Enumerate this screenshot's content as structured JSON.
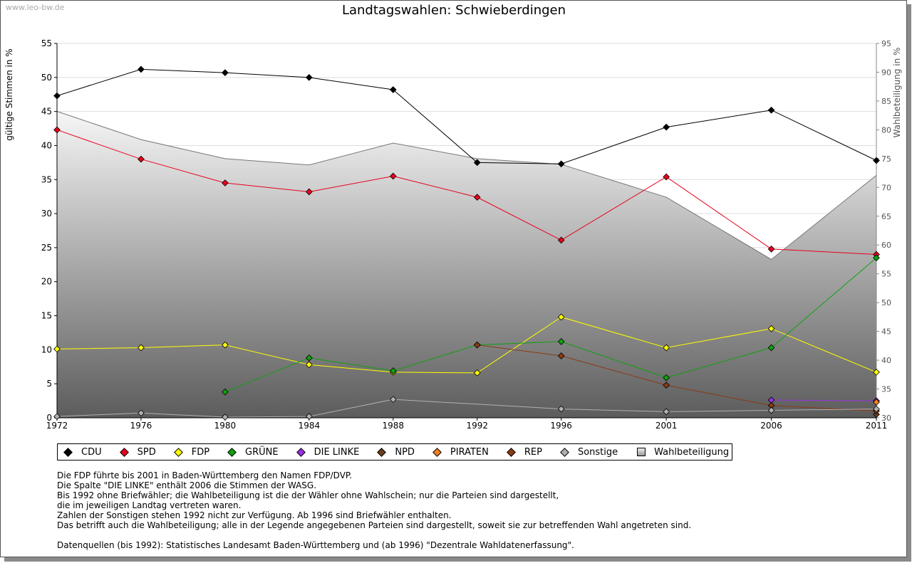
{
  "watermark": "www.leo-bw.de",
  "legend": [
    {
      "label": "CDU",
      "color": "#000000"
    },
    {
      "label": "SPD",
      "color": "#e8001c"
    },
    {
      "label": "FDP",
      "color": "#ffff00"
    },
    {
      "label": "GRÜNE",
      "color": "#10a010"
    },
    {
      "label": "DIE LINKE",
      "color": "#9a30e0"
    },
    {
      "label": "NPD",
      "color": "#6b3e1e"
    },
    {
      "label": "PIRATEN",
      "color": "#f08020"
    },
    {
      "label": "REP",
      "color": "#8b3a14"
    },
    {
      "label": "Sonstige",
      "color": "#b0b0b0"
    },
    {
      "label": "Wahlbeteiligung",
      "color": "#bbbbbb"
    }
  ],
  "notes": [
    "Die FDP führte bis 2001 in Baden-Württemberg den Namen FDP/DVP.",
    "Die Spalte \"DIE LINKE\" enthält 2006 die Stimmen der WASG.",
    "Bis 1992 ohne Briefwähler; die Wahlbeteiligung ist die der Wähler ohne Wahlschein; nur die Parteien sind dargestellt,",
    "die im jeweiligen Landtag vertreten waren.",
    "Zahlen der Sonstigen stehen 1992 nicht zur Verfügung. Ab 1996 sind Briefwähler enthalten.",
    "Das betrifft auch die Wahlbeteiligung; alle in der Legende angegebenen Parteien sind dargestellt, soweit sie zur betreffenden Wahl angetreten sind."
  ],
  "source": "Datenquellen (bis 1992): Statistisches Landesamt Baden-Württemberg und (ab 1996) \"Dezentrale Wahldatenerfassung\".",
  "chart_data": {
    "type": "line",
    "title": "Landtagswahlen: Schwieberdingen",
    "ylabel": "gültige Stimmen in %",
    "y2label": "Wahlbeteiligung in %",
    "ylim": [
      0,
      55
    ],
    "y2lim": [
      30,
      95
    ],
    "yticks": [
      "0",
      "5",
      "10",
      "15",
      "20",
      "25",
      "30",
      "35",
      "40",
      "45",
      "50",
      "55"
    ],
    "y2ticks": [
      "30",
      "35",
      "40",
      "45",
      "50",
      "55",
      "60",
      "65",
      "70",
      "75",
      "80",
      "85",
      "90",
      "95"
    ],
    "x": [
      1972,
      1976,
      1980,
      1984,
      1988,
      1992,
      1996,
      2001,
      2006,
      2011
    ],
    "xticks": [
      "1972",
      "1976",
      "1980",
      "1984",
      "1988",
      "1992",
      "1996",
      "2001",
      "2006",
      "2011"
    ],
    "grid": true,
    "legend_position": "bottom",
    "series": [
      {
        "name": "CDU",
        "color": "#000000",
        "values": [
          47.3,
          51.2,
          50.7,
          50.0,
          48.2,
          37.5,
          37.3,
          42.7,
          45.2,
          37.8
        ]
      },
      {
        "name": "SPD",
        "color": "#e8001c",
        "values": [
          42.3,
          38.0,
          34.5,
          33.2,
          35.5,
          32.4,
          26.1,
          35.4,
          24.8,
          24.0
        ]
      },
      {
        "name": "FDP",
        "color": "#ffff00",
        "values": [
          10.1,
          10.3,
          10.7,
          7.8,
          6.7,
          6.6,
          14.8,
          10.3,
          13.1,
          6.7
        ]
      },
      {
        "name": "GRÜNE",
        "color": "#10a010",
        "values": [
          null,
          null,
          3.8,
          8.8,
          6.9,
          10.7,
          11.2,
          5.9,
          10.3,
          23.5
        ]
      },
      {
        "name": "DIE LINKE",
        "color": "#9a30e0",
        "values": [
          null,
          null,
          null,
          null,
          null,
          null,
          null,
          null,
          2.6,
          2.5
        ]
      },
      {
        "name": "NPD",
        "color": "#6b3e1e",
        "values": [
          null,
          null,
          null,
          null,
          null,
          null,
          null,
          null,
          null,
          0.5
        ]
      },
      {
        "name": "PIRATEN",
        "color": "#f08020",
        "values": [
          null,
          null,
          null,
          null,
          null,
          null,
          null,
          null,
          null,
          2.3
        ]
      },
      {
        "name": "REP",
        "color": "#8b3a14",
        "values": [
          null,
          null,
          null,
          null,
          null,
          10.7,
          9.1,
          4.8,
          1.8,
          1.0
        ]
      },
      {
        "name": "Sonstige",
        "color": "#b0b0b0",
        "values": [
          0.2,
          0.7,
          0.1,
          0.2,
          2.7,
          null,
          1.3,
          0.9,
          1.1,
          1.3
        ]
      }
    ],
    "turnout": {
      "name": "Wahlbeteiligung",
      "values": [
        83.2,
        78.3,
        75.0,
        73.9,
        77.7,
        75.0,
        74.0,
        68.3,
        57.5,
        72.1
      ]
    }
  }
}
